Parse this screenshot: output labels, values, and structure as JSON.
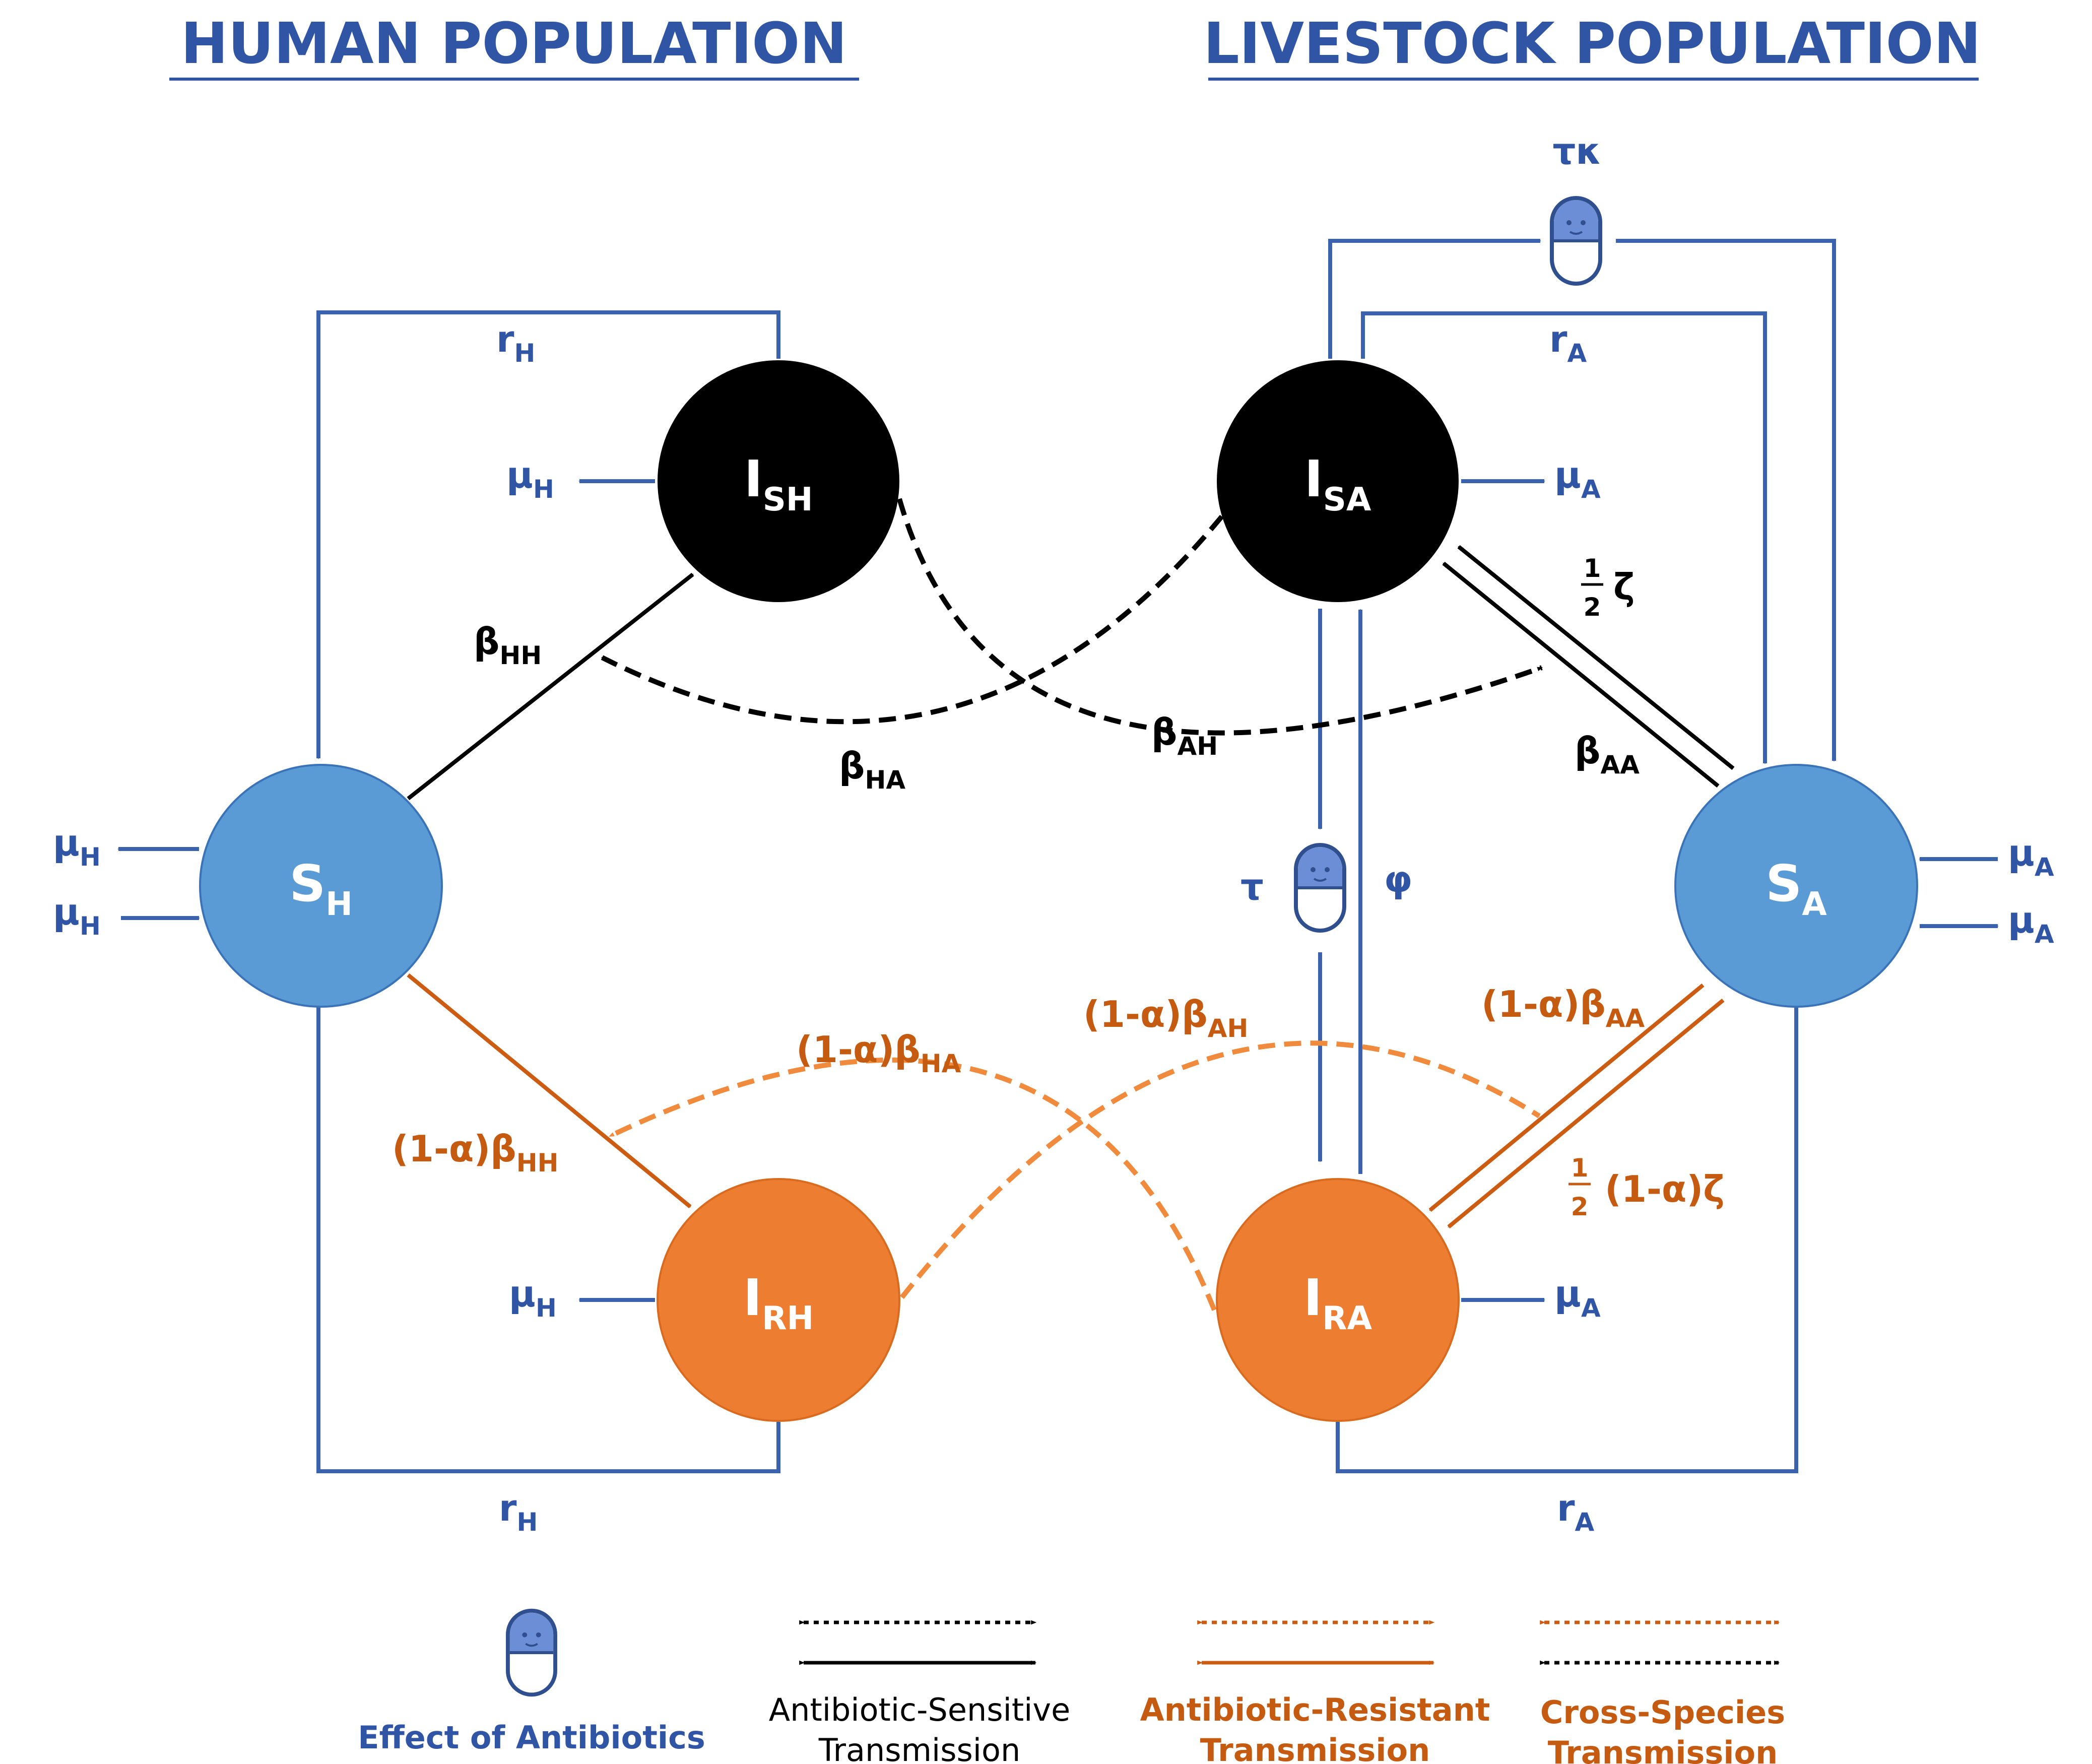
{
  "headings": {
    "human": "HUMAN POPULATION",
    "livestock": "LIVESTOCK POPULATION"
  },
  "nodes": {
    "s_h": {
      "main": "S",
      "sub": "H"
    },
    "i_sh": {
      "main": "I",
      "sub": "SH"
    },
    "i_rh": {
      "main": "I",
      "sub": "RH"
    },
    "i_sa": {
      "main": "I",
      "sub": "SA"
    },
    "s_a": {
      "main": "S",
      "sub": "A"
    },
    "i_ra": {
      "main": "I",
      "sub": "RA"
    }
  },
  "labels": {
    "r_h_top": {
      "main": "r",
      "sub": "H"
    },
    "r_h_bottom": {
      "main": "r",
      "sub": "H"
    },
    "r_a_top": {
      "main": "r",
      "sub": "A"
    },
    "r_a_bottom": {
      "main": "r",
      "sub": "A"
    },
    "tau_kappa": "τκ",
    "tau": "τ",
    "phi": "φ",
    "mu_h_ish": {
      "main": "μ",
      "sub": "H"
    },
    "mu_h_irh": {
      "main": "μ",
      "sub": "H"
    },
    "mu_h_out": {
      "main": "μ",
      "sub": "H"
    },
    "mu_h_in": {
      "main": "μ",
      "sub": "H"
    },
    "mu_a_isa": {
      "main": "μ",
      "sub": "A"
    },
    "mu_a_ira": {
      "main": "μ",
      "sub": "A"
    },
    "mu_a_in": {
      "main": "μ",
      "sub": "A"
    },
    "mu_a_out": {
      "main": "μ",
      "sub": "A"
    },
    "beta_hh": {
      "main": "β",
      "sub": "HH"
    },
    "beta_ha": {
      "main": "β",
      "sub": "HA"
    },
    "beta_ah": {
      "main": "β",
      "sub": "AH"
    },
    "beta_aa": {
      "main": "β",
      "sub": "AA"
    },
    "half_zeta": {
      "num": "1",
      "den": "2",
      "rest": "ζ"
    },
    "res_beta_hh": {
      "main": "(1-α)β",
      "sub": "HH"
    },
    "res_beta_ha": {
      "main": "(1-α)β",
      "sub": "HA"
    },
    "res_beta_ah": {
      "main": "(1-α)β",
      "sub": "AH"
    },
    "res_beta_aa": {
      "main": "(1-α)β",
      "sub": "AA"
    },
    "half_res_zeta": {
      "num": "1",
      "den": "2",
      "rest": "(1-α)ζ"
    }
  },
  "legend": {
    "antibiotics": "Effect of Antibiotics",
    "sensitive": [
      "Antibiotic-Sensitive",
      "Transmission"
    ],
    "resistant": [
      "Antibiotic-Resistant",
      "Transmission"
    ],
    "cross": [
      "Cross-Species",
      "Transmission"
    ]
  },
  "colors": {
    "blue_text": "#2f55a4",
    "blue_line": "#3b63ad",
    "susceptible_fill": "#5b9bd5",
    "sensitive_fill": "#000000",
    "resistant_fill": "#ed7d31",
    "resistant_line": "#cc5c12",
    "resistant_text": "#c55a11",
    "cross_dash": "#f08a3c",
    "pill_body": "#6b8ed6",
    "pill_face": "#2f4f8f"
  },
  "icons": {
    "pill": "antibiotic-pill-icon"
  }
}
